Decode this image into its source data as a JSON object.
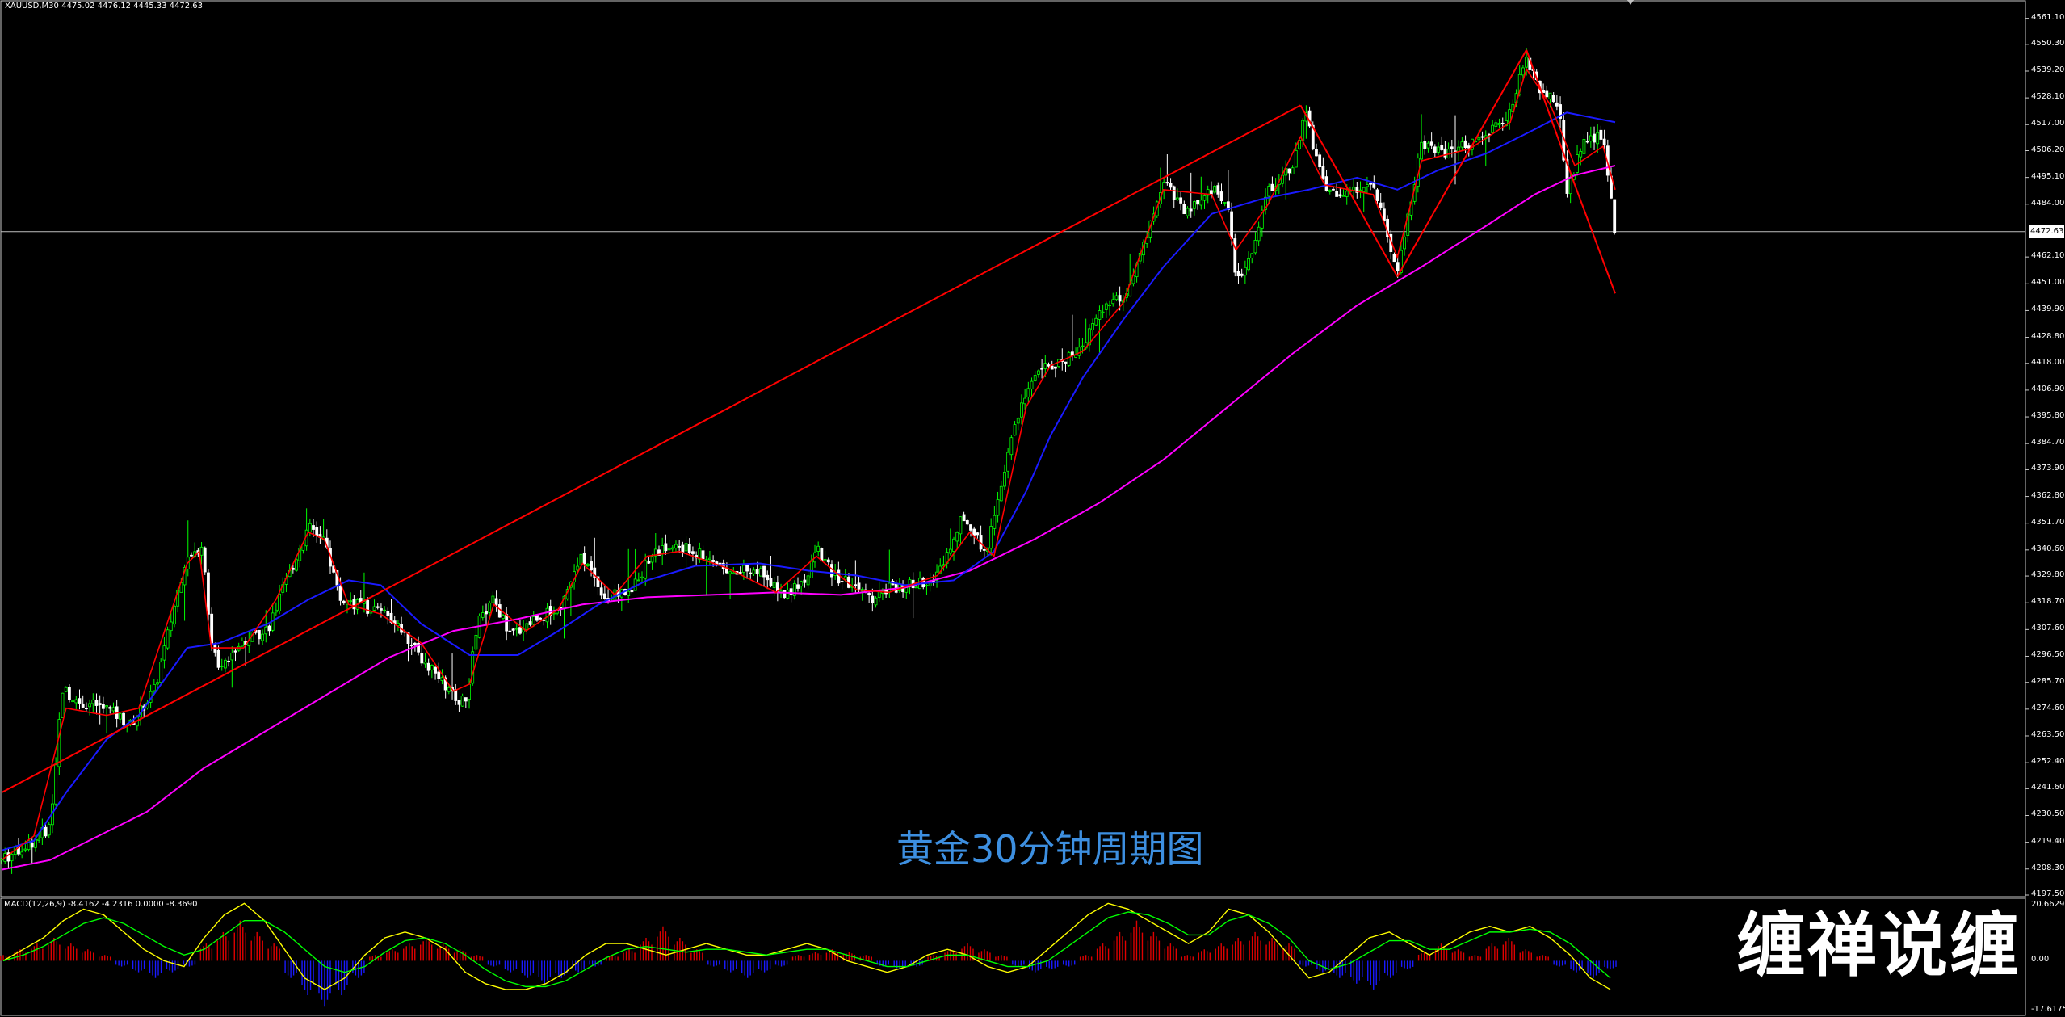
{
  "window": {
    "main_title": "XAUUSD,M30  4475.02 4476.12 4445.33 4472.63",
    "macd_title": "MACD(12,26,9) -8.4162 -4.2316 0.0000 -8.3690"
  },
  "caption": "黄金30分钟周期图",
  "watermark": "缠禅说缠",
  "last_price": "4472.63",
  "colors": {
    "background": "#000000",
    "frame": "#c8c8c8",
    "bull_candle": "#00ff00",
    "bear_candle": "#ffffff",
    "ma_fast": "#ff0000",
    "ma_mid": "#1a1aff",
    "ma_slow": "#ff00ff",
    "trendlines": "#ff0000",
    "macd_pos": "#e00000",
    "macd_neg": "#1a1aff",
    "macd_line": "#ffff00",
    "signal_line": "#00ff00",
    "caption": "#3d8fe0"
  },
  "chart_data": [
    {
      "type": "candlestick",
      "title": "XAUUSD,M30",
      "ylim": [
        4197.5,
        4566.0
      ],
      "y_ticks": [
        "4561.10",
        "4550.30",
        "4539.20",
        "4528.10",
        "4517.00",
        "4506.20",
        "4495.10",
        "4484.00",
        "4472.63",
        "4462.10",
        "4451.00",
        "4439.90",
        "4428.80",
        "4418.00",
        "4406.90",
        "4395.80",
        "4384.70",
        "4373.90",
        "4362.80",
        "4351.70",
        "4340.60",
        "4329.80",
        "4318.70",
        "4307.60",
        "4296.50",
        "4285.70",
        "4274.60",
        "4263.50",
        "4252.40",
        "4241.60",
        "4230.50",
        "4219.40",
        "4208.30",
        "4197.50"
      ],
      "last_price": 4472.63,
      "price_path": [
        [
          0,
          4212
        ],
        [
          20,
          4216
        ],
        [
          40,
          4220
        ],
        [
          60,
          4226
        ],
        [
          75,
          4283
        ],
        [
          95,
          4278
        ],
        [
          130,
          4275
        ],
        [
          160,
          4268
        ],
        [
          190,
          4283
        ],
        [
          230,
          4340
        ],
        [
          250,
          4342
        ],
        [
          260,
          4300
        ],
        [
          270,
          4293
        ],
        [
          300,
          4303
        ],
        [
          330,
          4308
        ],
        [
          350,
          4325
        ],
        [
          380,
          4350
        ],
        [
          400,
          4345
        ],
        [
          420,
          4320
        ],
        [
          440,
          4318
        ],
        [
          460,
          4316
        ],
        [
          490,
          4312
        ],
        [
          510,
          4300
        ],
        [
          530,
          4292
        ],
        [
          560,
          4280
        ],
        [
          575,
          4277
        ],
        [
          590,
          4310
        ],
        [
          610,
          4320
        ],
        [
          630,
          4305
        ],
        [
          660,
          4312
        ],
        [
          690,
          4316
        ],
        [
          720,
          4338
        ],
        [
          750,
          4320
        ],
        [
          780,
          4325
        ],
        [
          810,
          4340
        ],
        [
          840,
          4342
        ],
        [
          870,
          4338
        ],
        [
          900,
          4333
        ],
        [
          940,
          4332
        ],
        [
          970,
          4322
        ],
        [
          1000,
          4330
        ],
        [
          1010,
          4342
        ],
        [
          1030,
          4330
        ],
        [
          1060,
          4325
        ],
        [
          1080,
          4320
        ],
        [
          1100,
          4325
        ],
        [
          1130,
          4326
        ],
        [
          1160,
          4330
        ],
        [
          1190,
          4355
        ],
        [
          1220,
          4340
        ],
        [
          1250,
          4385
        ],
        [
          1280,
          4415
        ],
        [
          1310,
          4418
        ],
        [
          1340,
          4425
        ],
        [
          1360,
          4440
        ],
        [
          1390,
          4445
        ],
        [
          1420,
          4470
        ],
        [
          1440,
          4495
        ],
        [
          1470,
          4480
        ],
        [
          1500,
          4490
        ],
        [
          1520,
          4485
        ],
        [
          1530,
          4450
        ],
        [
          1545,
          4460
        ],
        [
          1570,
          4490
        ],
        [
          1600,
          4500
        ],
        [
          1615,
          4522
        ],
        [
          1640,
          4490
        ],
        [
          1670,
          4488
        ],
        [
          1700,
          4494
        ],
        [
          1720,
          4468
        ],
        [
          1730,
          4455
        ],
        [
          1760,
          4510
        ],
        [
          1790,
          4505
        ],
        [
          1820,
          4510
        ],
        [
          1850,
          4515
        ],
        [
          1870,
          4522
        ],
        [
          1890,
          4545
        ],
        [
          1910,
          4530
        ],
        [
          1930,
          4525
        ],
        [
          1940,
          4490
        ],
        [
          1960,
          4510
        ],
        [
          1985,
          4512
        ],
        [
          2000,
          4472
        ]
      ],
      "ma_fast_path": [
        [
          0,
          4212
        ],
        [
          40,
          4222
        ],
        [
          80,
          4275
        ],
        [
          130,
          4272
        ],
        [
          170,
          4275
        ],
        [
          230,
          4335
        ],
        [
          245,
          4340
        ],
        [
          260,
          4300
        ],
        [
          300,
          4300
        ],
        [
          340,
          4320
        ],
        [
          380,
          4348
        ],
        [
          400,
          4345
        ],
        [
          430,
          4318
        ],
        [
          470,
          4314
        ],
        [
          520,
          4302
        ],
        [
          560,
          4282
        ],
        [
          580,
          4285
        ],
        [
          610,
          4318
        ],
        [
          650,
          4307
        ],
        [
          690,
          4316
        ],
        [
          720,
          4335
        ],
        [
          760,
          4322
        ],
        [
          800,
          4338
        ],
        [
          840,
          4340
        ],
        [
          900,
          4333
        ],
        [
          960,
          4323
        ],
        [
          1010,
          4338
        ],
        [
          1060,
          4324
        ],
        [
          1100,
          4323
        ],
        [
          1160,
          4330
        ],
        [
          1200,
          4348
        ],
        [
          1230,
          4338
        ],
        [
          1270,
          4400
        ],
        [
          1300,
          4417
        ],
        [
          1340,
          4423
        ],
        [
          1390,
          4443
        ],
        [
          1440,
          4490
        ],
        [
          1500,
          4488
        ],
        [
          1530,
          4465
        ],
        [
          1570,
          4484
        ],
        [
          1610,
          4512
        ],
        [
          1640,
          4492
        ],
        [
          1700,
          4488
        ],
        [
          1730,
          4462
        ],
        [
          1760,
          4502
        ],
        [
          1820,
          4507
        ],
        [
          1870,
          4518
        ],
        [
          1890,
          4540
        ],
        [
          1920,
          4525
        ],
        [
          1950,
          4500
        ],
        [
          1985,
          4508
        ],
        [
          2000,
          4490
        ]
      ],
      "ma_mid_path": [
        [
          0,
          4216
        ],
        [
          40,
          4220
        ],
        [
          80,
          4240
        ],
        [
          130,
          4262
        ],
        [
          170,
          4272
        ],
        [
          230,
          4300
        ],
        [
          270,
          4302
        ],
        [
          330,
          4310
        ],
        [
          380,
          4320
        ],
        [
          430,
          4328
        ],
        [
          470,
          4326
        ],
        [
          520,
          4310
        ],
        [
          580,
          4297
        ],
        [
          640,
          4297
        ],
        [
          690,
          4307
        ],
        [
          740,
          4318
        ],
        [
          800,
          4328
        ],
        [
          860,
          4334
        ],
        [
          940,
          4335
        ],
        [
          1000,
          4332
        ],
        [
          1060,
          4330
        ],
        [
          1120,
          4326
        ],
        [
          1180,
          4328
        ],
        [
          1230,
          4340
        ],
        [
          1270,
          4365
        ],
        [
          1300,
          4388
        ],
        [
          1340,
          4412
        ],
        [
          1390,
          4436
        ],
        [
          1440,
          4458
        ],
        [
          1500,
          4480
        ],
        [
          1560,
          4486
        ],
        [
          1620,
          4490
        ],
        [
          1680,
          4495
        ],
        [
          1730,
          4490
        ],
        [
          1780,
          4498
        ],
        [
          1840,
          4505
        ],
        [
          1900,
          4515
        ],
        [
          1940,
          4522
        ],
        [
          1970,
          4520
        ],
        [
          2000,
          4518
        ]
      ],
      "ma_slow_path": [
        [
          0,
          4208
        ],
        [
          60,
          4212
        ],
        [
          120,
          4222
        ],
        [
          180,
          4232
        ],
        [
          250,
          4250
        ],
        [
          330,
          4266
        ],
        [
          410,
          4282
        ],
        [
          480,
          4296
        ],
        [
          560,
          4307
        ],
        [
          640,
          4312
        ],
        [
          720,
          4318
        ],
        [
          800,
          4321
        ],
        [
          880,
          4322
        ],
        [
          960,
          4323
        ],
        [
          1040,
          4322
        ],
        [
          1120,
          4325
        ],
        [
          1200,
          4332
        ],
        [
          1280,
          4345
        ],
        [
          1360,
          4360
        ],
        [
          1440,
          4378
        ],
        [
          1520,
          4400
        ],
        [
          1600,
          4422
        ],
        [
          1680,
          4442
        ],
        [
          1760,
          4458
        ],
        [
          1840,
          4475
        ],
        [
          1900,
          4488
        ],
        [
          1950,
          4496
        ],
        [
          2000,
          4500
        ]
      ],
      "trendlines": [
        [
          [
            0,
            4240
          ],
          [
            1610,
            4525
          ]
        ],
        [
          [
            1610,
            4525
          ],
          [
            1730,
            4454
          ]
        ],
        [
          [
            1730,
            4454
          ],
          [
            1890,
            4548
          ]
        ],
        [
          [
            1890,
            4548
          ],
          [
            1950,
            4492
          ]
        ],
        [
          [
            1950,
            4492
          ],
          [
            2000,
            4447
          ]
        ]
      ]
    },
    {
      "type": "histogram",
      "title": "MACD(12,26,9)",
      "ylim": [
        -17.6175,
        20.6629
      ],
      "y_ticks": [
        "20.6629",
        "0.00",
        "-17.6175"
      ],
      "values": [
        2,
        4,
        6,
        8,
        6,
        4,
        2,
        -2,
        -4,
        -6,
        -4,
        -2,
        6,
        10,
        14,
        10,
        6,
        -6,
        -12,
        -16,
        -12,
        -6,
        2,
        4,
        6,
        8,
        6,
        4,
        2,
        -2,
        -4,
        -6,
        -8,
        -6,
        -4,
        -2,
        2,
        4,
        8,
        12,
        8,
        4,
        -2,
        -4,
        -6,
        -4,
        -2,
        2,
        3,
        4,
        3,
        2,
        -2,
        -3,
        -2,
        2,
        4,
        6,
        4,
        2,
        -2,
        -4,
        -3,
        -2,
        2,
        6,
        10,
        14,
        10,
        6,
        2,
        4,
        6,
        8,
        10,
        8,
        6,
        -2,
        -4,
        -6,
        -8,
        -10,
        -6,
        -3,
        3,
        6,
        4,
        2,
        6,
        8,
        4,
        2,
        -2,
        -4,
        -6,
        -3
      ],
      "macd_line": [
        0,
        4,
        8,
        14,
        18,
        16,
        10,
        4,
        0,
        -2,
        8,
        16,
        20,
        14,
        4,
        -6,
        -10,
        -6,
        2,
        8,
        10,
        8,
        4,
        -4,
        -8,
        -10,
        -10,
        -8,
        -4,
        2,
        6,
        6,
        4,
        2,
        4,
        6,
        4,
        2,
        2,
        4,
        6,
        4,
        0,
        -2,
        -4,
        -2,
        2,
        4,
        2,
        -2,
        -4,
        -2,
        4,
        10,
        16,
        20,
        18,
        14,
        10,
        6,
        10,
        18,
        16,
        10,
        2,
        -6,
        -4,
        2,
        8,
        10,
        6,
        2,
        6,
        10,
        12,
        10,
        12,
        8,
        2,
        -6,
        -10
      ],
      "signal_line": [
        0,
        2,
        5,
        9,
        13,
        15,
        13,
        9,
        5,
        2,
        4,
        9,
        14,
        14,
        10,
        4,
        -2,
        -4,
        -2,
        3,
        7,
        8,
        6,
        2,
        -3,
        -7,
        -9,
        -9,
        -7,
        -3,
        1,
        4,
        5,
        4,
        3,
        4,
        4,
        3,
        2,
        3,
        4,
        4,
        2,
        0,
        -2,
        -2,
        0,
        2,
        2,
        0,
        -2,
        -2,
        0,
        5,
        10,
        15,
        17,
        16,
        13,
        9,
        9,
        14,
        16,
        13,
        8,
        0,
        -3,
        -1,
        3,
        7,
        7,
        4,
        4,
        7,
        10,
        10,
        11,
        10,
        6,
        0,
        -6
      ]
    }
  ]
}
